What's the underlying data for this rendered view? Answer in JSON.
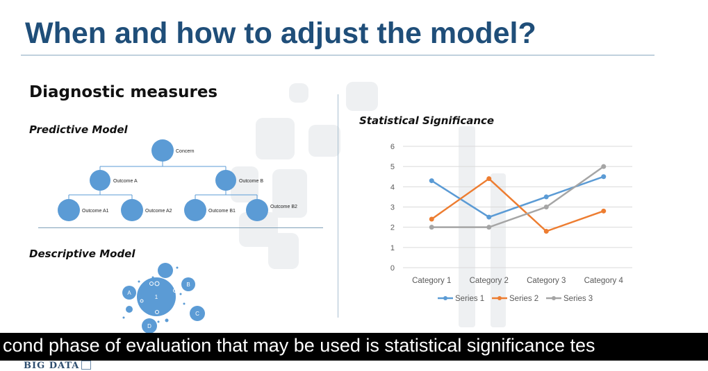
{
  "slide": {
    "title": "When and how to adjust the model?",
    "heading": "Diagnostic measures",
    "predictive_label": "Predictive Model",
    "descriptive_label": "Descriptive Model",
    "significance_label": "Statistical Significance"
  },
  "tree": {
    "root": "Concern",
    "level1": [
      "Outcome A",
      "Outcome B"
    ],
    "level2": [
      "Outcome A1",
      "Outcome A2",
      "Outcome B1",
      "Outcome B2"
    ]
  },
  "bubbles": {
    "center": "1",
    "labels": [
      "A",
      "B",
      "C",
      "D"
    ],
    "color": "#5b9bd5"
  },
  "chart_data": {
    "type": "line",
    "categories": [
      "Category 1",
      "Category 2",
      "Category 3",
      "Category 4"
    ],
    "series": [
      {
        "name": "Series 1",
        "values": [
          4.3,
          2.5,
          3.5,
          4.5
        ],
        "color": "#5b9bd5"
      },
      {
        "name": "Series 2",
        "values": [
          2.4,
          4.4,
          1.8,
          2.8
        ],
        "color": "#ed7d31"
      },
      {
        "name": "Series 3",
        "values": [
          2.0,
          2.0,
          3.0,
          5.0
        ],
        "color": "#a5a5a5"
      }
    ],
    "ylim": [
      0,
      6
    ],
    "yticks": [
      "0",
      "1",
      "2",
      "3",
      "4",
      "5",
      "6"
    ],
    "grid": true,
    "legend": "bottom",
    "title": "",
    "xlabel": "",
    "ylabel": ""
  },
  "caption": {
    "text": "cond phase of evaluation that may be used is statistical significance tes"
  },
  "logo": {
    "text": "BIG DATA"
  }
}
